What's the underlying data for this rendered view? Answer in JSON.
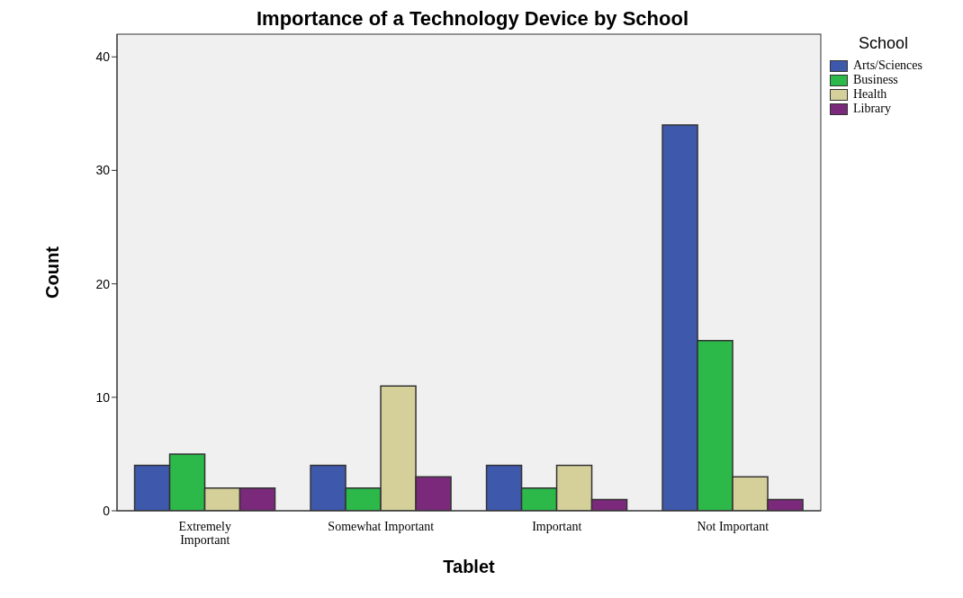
{
  "chart_data": {
    "type": "bar",
    "title": "Importance of a Technology Device by School",
    "xlabel": "Tablet",
    "ylabel": "Count",
    "legend_title": "School",
    "categories": [
      "Extremely Important",
      "Somewhat Important",
      "Important",
      "Not Important"
    ],
    "series": [
      {
        "name": "Arts/Sciences",
        "color": "#3e58ac",
        "values": [
          4,
          4,
          4,
          34
        ]
      },
      {
        "name": "Business",
        "color": "#2db84a",
        "values": [
          5,
          2,
          2,
          15
        ]
      },
      {
        "name": "Health",
        "color": "#d5d09a",
        "values": [
          2,
          11,
          4,
          3
        ]
      },
      {
        "name": "Library",
        "color": "#7b2a7b",
        "values": [
          2,
          3,
          1,
          1
        ]
      }
    ],
    "ylim": [
      0,
      42
    ],
    "yticks": [
      0,
      10,
      20,
      30,
      40
    ],
    "grid": false,
    "legend": "top right"
  }
}
